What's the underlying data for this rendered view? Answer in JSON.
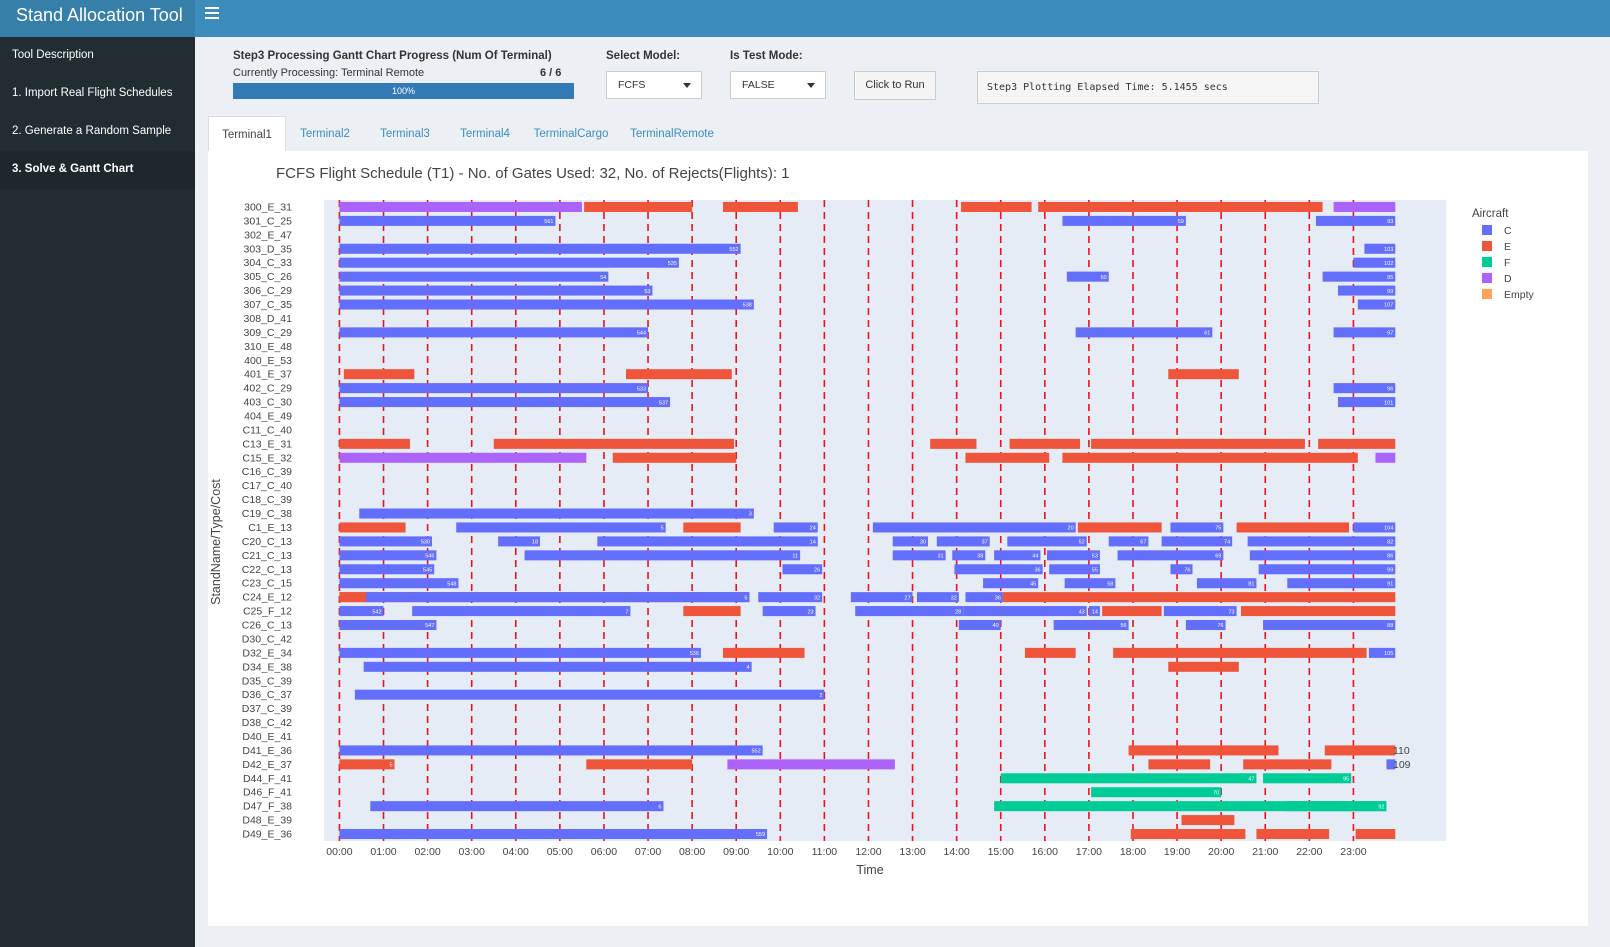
{
  "header": {
    "title": "Stand Allocation Tool",
    "menu_icon": "hamburger-icon"
  },
  "sidebar": {
    "items": [
      {
        "label": "Tool Description",
        "active": false
      },
      {
        "label": "1. Import Real Flight Schedules",
        "active": false
      },
      {
        "label": "2. Generate a Random Sample",
        "active": false
      },
      {
        "label": "3. Solve & Gantt Chart",
        "active": true
      }
    ]
  },
  "controls": {
    "progress_title": "Step3 Processing Gantt Chart Progress (Num Of Terminal)",
    "progress_status": "Currently Processing: Terminal Remote",
    "progress_count": "6 / 6",
    "progress_pct": "100%",
    "progress_value": 1.0,
    "model_label": "Select Model:",
    "model_value": "FCFS",
    "test_label": "Is Test Mode:",
    "test_value": "FALSE",
    "run_button": "Click to Run",
    "elapsed": "Step3 Plotting Elapsed Time: 5.1455 secs"
  },
  "tabs": [
    {
      "label": "Terminal1",
      "active": true
    },
    {
      "label": "Terminal2",
      "active": false
    },
    {
      "label": "Terminal3",
      "active": false
    },
    {
      "label": "Terminal4",
      "active": false
    },
    {
      "label": "TerminalCargo",
      "active": false
    },
    {
      "label": "TerminalRemote",
      "active": false
    }
  ],
  "chart_data": {
    "type": "gantt",
    "title": "FCFS Flight Schedule (T1) - No. of Gates Used: 32, No. of Rejects(Flights): 1",
    "xlabel": "Time",
    "ylabel": "StandName/Type/Cost",
    "xlim_hours": [
      -0.35,
      25.1
    ],
    "xticks": [
      "00:00",
      "01:00",
      "02:00",
      "03:00",
      "04:00",
      "05:00",
      "06:00",
      "07:00",
      "08:00",
      "09:00",
      "10:00",
      "11:00",
      "12:00",
      "13:00",
      "14:00",
      "15:00",
      "16:00",
      "17:00",
      "18:00",
      "19:00",
      "20:00",
      "21:00",
      "22:00",
      "23:00"
    ],
    "vlines_hours": [
      0,
      1,
      2,
      3,
      4,
      5,
      6,
      7,
      8,
      9,
      10,
      11,
      12,
      13,
      14,
      15,
      16,
      17,
      18,
      19,
      20,
      21,
      22,
      23
    ],
    "vline_color": "#e8141b",
    "plot_bg": "#e5ecf6",
    "legend": {
      "title": "Aircraft",
      "placement": "right",
      "entries": [
        {
          "name": "C",
          "color": "#636efa"
        },
        {
          "name": "E",
          "color": "#ef553b"
        },
        {
          "name": "F",
          "color": "#00cc96"
        },
        {
          "name": "D",
          "color": "#ab63fa"
        },
        {
          "name": "Empty",
          "color": "#ffa15a"
        }
      ]
    },
    "stands": [
      "300_E_31",
      "301_C_25",
      "302_E_47",
      "303_D_35",
      "304_C_33",
      "305_C_26",
      "306_C_29",
      "307_C_35",
      "308_D_41",
      "309_C_29",
      "310_E_48",
      "400_E_53",
      "401_E_37",
      "402_C_29",
      "403_C_30",
      "404_E_49",
      "C11_C_40",
      "C13_E_31",
      "C15_E_32",
      "C16_C_39",
      "C17_C_40",
      "C18_C_39",
      "C19_C_38",
      "C1_E_13",
      "C20_C_13",
      "C21_C_13",
      "C22_C_13",
      "C23_C_15",
      "C24_E_12",
      "C25_F_12",
      "C26_C_13",
      "D30_C_42",
      "D32_E_34",
      "D34_E_38",
      "D35_C_39",
      "D36_C_37",
      "D37_C_39",
      "D38_C_42",
      "D40_E_41",
      "D41_E_36",
      "D42_E_37",
      "D44_F_41",
      "D46_F_41",
      "D47_F_38",
      "D48_E_39",
      "D49_E_36"
    ],
    "outside_labels": [
      {
        "row": 39,
        "text": "110"
      },
      {
        "row": 40,
        "text": "109"
      }
    ],
    "bars": [
      [
        0,
        0,
        5.5,
        "D"
      ],
      [
        0,
        5.55,
        8.0,
        "E"
      ],
      [
        0,
        8.7,
        10.4,
        "E"
      ],
      [
        0,
        14.1,
        15.7,
        "E"
      ],
      [
        0,
        15.85,
        22.3,
        "E"
      ],
      [
        0,
        22.55,
        23.95,
        "D"
      ],
      [
        1,
        0,
        4.9,
        "C",
        "561"
      ],
      [
        1,
        16.4,
        19.2,
        "C",
        "59"
      ],
      [
        1,
        22.15,
        23.95,
        "C",
        "93"
      ],
      [
        3,
        0,
        9.1,
        "C",
        "552"
      ],
      [
        3,
        23.25,
        23.95,
        "C",
        "103"
      ],
      [
        4,
        0,
        7.7,
        "C",
        "535"
      ],
      [
        4,
        23.0,
        23.95,
        "C",
        "102"
      ],
      [
        5,
        0,
        6.1,
        "C",
        "54"
      ],
      [
        5,
        16.5,
        17.45,
        "C",
        "60"
      ],
      [
        5,
        22.3,
        23.95,
        "C",
        "95"
      ],
      [
        6,
        0,
        7.1,
        "C",
        "53"
      ],
      [
        6,
        22.65,
        23.95,
        "C",
        "99"
      ],
      [
        7,
        0,
        9.4,
        "C",
        "538"
      ],
      [
        7,
        23.1,
        23.95,
        "C",
        "107"
      ],
      [
        9,
        0,
        7.0,
        "C",
        "544"
      ],
      [
        9,
        16.7,
        19.8,
        "C",
        "61"
      ],
      [
        9,
        22.55,
        23.95,
        "C",
        "97"
      ],
      [
        12,
        0.1,
        1.7,
        "E"
      ],
      [
        12,
        6.5,
        8.9,
        "E"
      ],
      [
        12,
        18.8,
        20.4,
        "E"
      ],
      [
        13,
        0,
        7.0,
        "C",
        "533"
      ],
      [
        13,
        22.55,
        23.95,
        "C",
        "96"
      ],
      [
        14,
        0,
        7.5,
        "C",
        "537"
      ],
      [
        14,
        22.65,
        23.95,
        "C",
        "101"
      ],
      [
        17,
        0,
        1.6,
        "E"
      ],
      [
        17,
        3.5,
        8.95,
        "E"
      ],
      [
        17,
        13.4,
        14.45,
        "E"
      ],
      [
        17,
        15.2,
        16.8,
        "E"
      ],
      [
        17,
        17.05,
        21.9,
        "E"
      ],
      [
        17,
        22.2,
        23.95,
        "E"
      ],
      [
        18,
        0,
        5.6,
        "D"
      ],
      [
        18,
        6.2,
        9.0,
        "E"
      ],
      [
        18,
        14.2,
        16.1,
        "E"
      ],
      [
        18,
        16.4,
        23.1,
        "E"
      ],
      [
        18,
        23.5,
        23.95,
        "D"
      ],
      [
        22,
        0.45,
        9.4,
        "C",
        "3"
      ],
      [
        23,
        0,
        1.5,
        "E"
      ],
      [
        23,
        2.65,
        7.4,
        "C",
        "5"
      ],
      [
        23,
        7.8,
        9.1,
        "E"
      ],
      [
        23,
        9.85,
        10.85,
        "C",
        "24"
      ],
      [
        23,
        12.1,
        16.7,
        "C",
        "20"
      ],
      [
        23,
        16.75,
        18.65,
        "E"
      ],
      [
        23,
        18.85,
        20.05,
        "C",
        "75"
      ],
      [
        23,
        20.35,
        22.9,
        "E"
      ],
      [
        23,
        23.0,
        23.95,
        "C",
        "104"
      ],
      [
        24,
        0,
        2.1,
        "C",
        "530"
      ],
      [
        24,
        3.6,
        4.55,
        "C",
        "18"
      ],
      [
        24,
        5.85,
        10.85,
        "C",
        "14"
      ],
      [
        24,
        12.55,
        13.35,
        "C",
        "30"
      ],
      [
        24,
        13.55,
        14.75,
        "C",
        "37"
      ],
      [
        24,
        15.15,
        16.95,
        "C",
        "52"
      ],
      [
        24,
        17.45,
        18.35,
        "C",
        "67"
      ],
      [
        24,
        18.65,
        20.25,
        "C",
        "74"
      ],
      [
        24,
        20.6,
        23.95,
        "C",
        "82"
      ],
      [
        25,
        0,
        2.2,
        "C",
        "546"
      ],
      [
        25,
        4.2,
        10.45,
        "C",
        "11"
      ],
      [
        25,
        12.55,
        13.75,
        "C",
        "31"
      ],
      [
        25,
        13.9,
        14.65,
        "C",
        "38"
      ],
      [
        25,
        14.85,
        15.9,
        "C",
        "44"
      ],
      [
        25,
        16.05,
        17.25,
        "C",
        "53"
      ],
      [
        25,
        17.65,
        20.05,
        "C",
        "69"
      ],
      [
        25,
        20.65,
        23.95,
        "C",
        "86"
      ],
      [
        26,
        0,
        2.15,
        "C",
        "545"
      ],
      [
        26,
        10.05,
        10.95,
        "C",
        "26"
      ],
      [
        26,
        13.95,
        15.95,
        "C",
        "36"
      ],
      [
        26,
        16.1,
        17.25,
        "C",
        "55"
      ],
      [
        26,
        18.85,
        19.35,
        "C",
        "76"
      ],
      [
        26,
        20.85,
        23.95,
        "C",
        "99"
      ],
      [
        27,
        0,
        2.7,
        "C",
        "548"
      ],
      [
        27,
        14.6,
        15.85,
        "C",
        "45"
      ],
      [
        27,
        16.45,
        17.6,
        "C",
        "58"
      ],
      [
        27,
        19.45,
        20.8,
        "C",
        "81"
      ],
      [
        27,
        21.5,
        23.95,
        "C",
        "91"
      ],
      [
        28,
        0,
        9.3,
        "E",
        "543"
      ],
      [
        28,
        0,
        0.6,
        "E"
      ],
      [
        28,
        0.6,
        9.3,
        "C",
        "5"
      ],
      [
        28,
        9.5,
        10.95,
        "C",
        "32"
      ],
      [
        28,
        11.6,
        13.0,
        "C",
        "27"
      ],
      [
        28,
        13.1,
        14.05,
        "C",
        "32"
      ],
      [
        28,
        14.2,
        15.05,
        "C",
        "36"
      ],
      [
        28,
        15.05,
        23.95,
        "E"
      ],
      [
        29,
        0,
        1.0,
        "C",
        "542"
      ],
      [
        29,
        1.65,
        6.6,
        "C",
        "7"
      ],
      [
        29,
        7.8,
        9.1,
        "E"
      ],
      [
        29,
        9.6,
        10.8,
        "C",
        "23"
      ],
      [
        29,
        11.7,
        14.15,
        "C",
        "28"
      ],
      [
        29,
        14.15,
        16.95,
        "C",
        "43"
      ],
      [
        29,
        17.0,
        17.25,
        "C",
        "14"
      ],
      [
        29,
        17.3,
        18.65,
        "E"
      ],
      [
        29,
        18.7,
        20.35,
        "C",
        "73"
      ],
      [
        29,
        20.45,
        23.95,
        "E"
      ],
      [
        30,
        0,
        2.2,
        "C",
        "547"
      ],
      [
        30,
        14.05,
        15.0,
        "C",
        "40"
      ],
      [
        30,
        16.2,
        17.9,
        "C",
        "56"
      ],
      [
        30,
        19.2,
        20.1,
        "C",
        "76"
      ],
      [
        30,
        20.95,
        23.95,
        "C",
        "88"
      ],
      [
        32,
        0,
        8.2,
        "C",
        "536"
      ],
      [
        32,
        8.7,
        10.55,
        "E"
      ],
      [
        32,
        15.55,
        16.7,
        "E"
      ],
      [
        32,
        17.55,
        23.3,
        "E"
      ],
      [
        32,
        23.35,
        23.95,
        "C",
        "105"
      ],
      [
        33,
        0.55,
        9.35,
        "C",
        "4"
      ],
      [
        33,
        18.8,
        20.4,
        "E"
      ],
      [
        35,
        0.35,
        11.0,
        "C",
        "2"
      ],
      [
        39,
        0,
        9.6,
        "C",
        "552"
      ],
      [
        39,
        17.9,
        21.3,
        "E"
      ],
      [
        39,
        22.35,
        23.95,
        "E"
      ],
      [
        40,
        0,
        1.25,
        "E",
        "5"
      ],
      [
        40,
        5.6,
        8.0,
        "E"
      ],
      [
        40,
        8.8,
        12.6,
        "D"
      ],
      [
        40,
        18.35,
        19.75,
        "E"
      ],
      [
        40,
        20.5,
        22.5,
        "E"
      ],
      [
        40,
        23.75,
        23.95,
        "C"
      ],
      [
        41,
        15.0,
        20.8,
        "F",
        "47"
      ],
      [
        41,
        20.95,
        22.95,
        "F",
        "95"
      ],
      [
        42,
        17.05,
        20.0,
        "F",
        "70"
      ],
      [
        43,
        0.7,
        7.35,
        "C",
        "6"
      ],
      [
        43,
        14.85,
        23.75,
        "F",
        "46"
      ],
      [
        43,
        21.45,
        23.75,
        "F",
        "92"
      ],
      [
        44,
        19.1,
        20.3,
        "E"
      ],
      [
        45,
        0,
        9.7,
        "C",
        "559"
      ],
      [
        45,
        17.95,
        20.55,
        "E"
      ],
      [
        45,
        20.8,
        22.45,
        "E"
      ],
      [
        45,
        23.05,
        23.95,
        "E"
      ]
    ]
  }
}
